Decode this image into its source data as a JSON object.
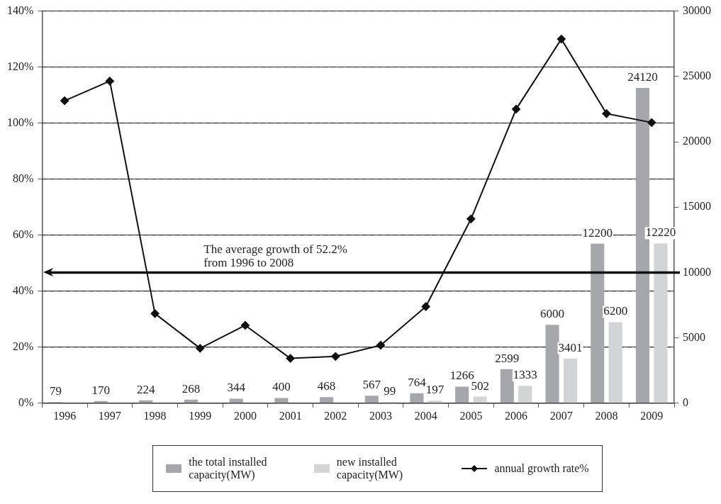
{
  "chart_data": {
    "type": "bar",
    "categories": [
      "1996",
      "1997",
      "1998",
      "1999",
      "2000",
      "2001",
      "2002",
      "2003",
      "2004",
      "2005",
      "2006",
      "2007",
      "2008",
      "2009"
    ],
    "series": [
      {
        "name": "the total installed capacity(MW)",
        "axis": "y2",
        "color": "#a6a7ab",
        "values": [
          79,
          170,
          224,
          268,
          344,
          400,
          468,
          567,
          764,
          1266,
          2599,
          6000,
          12200,
          24120
        ],
        "value_labels": [
          "79",
          "170",
          "224",
          "268",
          "344",
          "400",
          "468",
          "567",
          "764",
          "1266",
          "2599",
          "6000",
          "12200",
          "24120"
        ]
      },
      {
        "name": "new installed capacity(MW)",
        "axis": "y2",
        "color": "#d3d4d6",
        "values": [
          null,
          null,
          null,
          null,
          null,
          null,
          null,
          99,
          197,
          502,
          1333,
          3401,
          6200,
          12220
        ],
        "value_labels": [
          null,
          null,
          null,
          null,
          null,
          null,
          null,
          "99",
          "197",
          "502",
          "1333",
          "3401",
          "6200",
          "12220"
        ]
      },
      {
        "name": "annual growth rate%",
        "type": "line",
        "axis": "y",
        "color": "#111111",
        "marker": "diamond",
        "values": [
          108,
          115,
          32,
          19.6,
          27.8,
          16,
          16.7,
          20.7,
          34.5,
          65.8,
          105,
          130,
          103.4,
          100.2
        ]
      }
    ],
    "ylim": [
      0,
      140
    ],
    "yticks": [
      {
        "value": 0,
        "label": "0%"
      },
      {
        "value": 20,
        "label": "20%"
      },
      {
        "value": 40,
        "label": "40%"
      },
      {
        "value": 60,
        "label": "60%"
      },
      {
        "value": 80,
        "label": "80%"
      },
      {
        "value": 100,
        "label": "100%"
      },
      {
        "value": 120,
        "label": "120%"
      },
      {
        "value": 140,
        "label": "140%"
      }
    ],
    "y2lim": [
      0,
      30000
    ],
    "y2ticks": [
      0,
      5000,
      10000,
      15000,
      20000,
      25000,
      30000
    ],
    "ref_lines": [
      {
        "axis": "y2",
        "value": 10000,
        "label": "The average growth of 52.2%\nfrom 1996 to 2008",
        "color": "#111111"
      }
    ],
    "grid": "y",
    "legend": "bottom"
  }
}
